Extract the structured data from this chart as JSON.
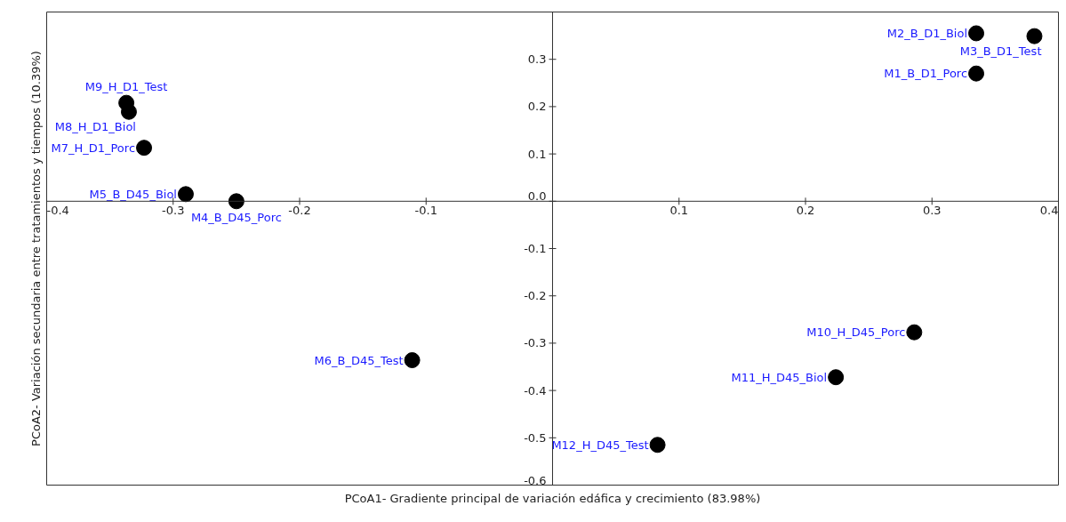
{
  "chart_data": {
    "type": "scatter",
    "xlabel": "PCoA1- Gradiente principal de variación edáfica y crecimiento (83.98%)",
    "ylabel": "PCoA2- Variación secundaria entre tratamientos y tiempos (10.39%)",
    "xlim": [
      -0.4,
      0.4
    ],
    "ylim": [
      -0.6,
      0.4
    ],
    "xticks": [
      -0.4,
      -0.3,
      -0.2,
      -0.1,
      0.1,
      0.2,
      0.3,
      0.4
    ],
    "yticks": [
      -0.6,
      -0.5,
      -0.4,
      -0.3,
      -0.2,
      -0.1,
      {
        "value": 0,
        "label": "0.0"
      },
      0.1,
      0.2,
      0.3
    ],
    "marker": "circle",
    "series": [
      {
        "color": "#000000",
        "x": [
          0.335,
          0.335,
          0.381,
          -0.25,
          -0.29,
          -0.111,
          -0.323,
          -0.335,
          -0.337,
          0.286,
          0.224,
          0.083
        ],
        "values": [
          0.27,
          0.355,
          0.349,
          0.0,
          0.015,
          -0.336,
          0.113,
          0.189,
          0.208,
          -0.277,
          -0.372,
          -0.515
        ]
      }
    ],
    "annotations": [
      {
        "text": "M1_B_D1_Porc",
        "x": 0.335,
        "y": 0.27
      },
      {
        "text": "M2_B_D1_Biol",
        "x": 0.335,
        "y": 0.355
      },
      {
        "text": "M3_B_D1_Test",
        "x": 0.381,
        "y": 0.349
      },
      {
        "text": "M4_B_D45_Porc",
        "x": -0.25,
        "y": 0.0
      },
      {
        "text": "M5_B_D45_Biol",
        "x": -0.29,
        "y": 0.015
      },
      {
        "text": "M6_B_D45_Test",
        "x": -0.111,
        "y": -0.336
      },
      {
        "text": "M7_H_D1_Porc",
        "x": -0.323,
        "y": 0.113
      },
      {
        "text": "M8_H_D1_Biol",
        "x": -0.335,
        "y": 0.189
      },
      {
        "text": "M9_H_D1_Test",
        "x": -0.337,
        "y": 0.208
      },
      {
        "text": "M10_H_D45_Porc",
        "x": 0.286,
        "y": -0.277
      },
      {
        "text": "M11_H_D45_Biol",
        "x": 0.224,
        "y": -0.372
      },
      {
        "text": "M12_H_D45_Test",
        "x": 0.083,
        "y": -0.515
      }
    ]
  }
}
